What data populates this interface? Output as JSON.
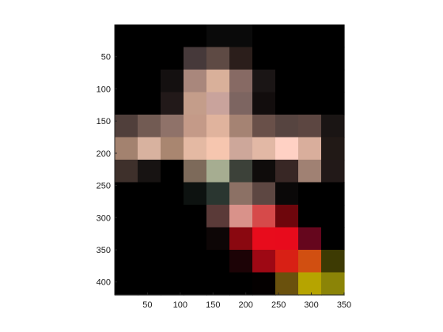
{
  "chart_data": {
    "type": "heatmap",
    "title": "",
    "xlabel": "",
    "ylabel": "",
    "xlim": [
      0,
      350
    ],
    "ylim": [
      0,
      420
    ],
    "y_direction": "reversed",
    "grid": false,
    "block_size": 35,
    "x_ticks": [
      50,
      100,
      150,
      200,
      250,
      300,
      350
    ],
    "y_ticks": [
      50,
      100,
      150,
      200,
      250,
      300,
      350,
      400
    ],
    "pixel_rgb": [
      [
        [
          "#000000",
          "#000000",
          "#000000",
          "#000000",
          "#0a0a0a",
          "#0a0a0a",
          "#000000",
          "#000000",
          "#000000",
          "#000000"
        ],
        [
          "#000000",
          "#000000",
          "#000000",
          "#46393a",
          "#5e4a44",
          "#2b1e1b",
          "#000000",
          "#000000",
          "#000000",
          "#000000"
        ],
        [
          "#000000",
          "#000000",
          "#141010",
          "#a9877c",
          "#d9b09a",
          "#876a64",
          "#1a1515",
          "#000000",
          "#000000",
          "#000000"
        ],
        [
          "#000000",
          "#000000",
          "#221919",
          "#c49d8a",
          "#c9a39c",
          "#7d6561",
          "#120d0d",
          "#000000",
          "#000000",
          "#000000"
        ],
        [
          "#503f3b",
          "#725b53",
          "#8f7269",
          "#c49a88",
          "#e0b39d",
          "#a58373",
          "#695049",
          "#564440",
          "#5c4641",
          "#1a1514"
        ],
        [
          "#a3826f",
          "#d8b29f",
          "#a98670",
          "#e4b9a3",
          "#f6c6af",
          "#cda79a",
          "#e2b8a5",
          "#ffd1c4",
          "#d9ae9c",
          "#211916"
        ],
        [
          "#3e302b",
          "#171312",
          "#000000",
          "#7d6a5a",
          "#a6ad91",
          "#3c4139",
          "#0f0c0b",
          "#382725",
          "#a08173",
          "#221918"
        ],
        [
          "#000000",
          "#000000",
          "#000000",
          "#0d1210",
          "#2a3630",
          "#8c7165",
          "#5d4742",
          "#0a0808",
          "#000000",
          "#000000"
        ],
        [
          "#000000",
          "#000000",
          "#000000",
          "#000000",
          "#5a3a38",
          "#d9928a",
          "#d64a4a",
          "#6e060c",
          "#000000",
          "#000000"
        ],
        [
          "#000000",
          "#000000",
          "#000000",
          "#000000",
          "#0d0606",
          "#8a0810",
          "#e80c1c",
          "#e80b1c",
          "#65061d",
          "#000000"
        ],
        [
          "#000000",
          "#000000",
          "#000000",
          "#000000",
          "#000000",
          "#1c0306",
          "#9e0814",
          "#d82015",
          "#d14f11",
          "#3d3a03"
        ],
        [
          "#000000",
          "#000000",
          "#000000",
          "#000000",
          "#000000",
          "#000000",
          "#040000",
          "#6a510d",
          "#b6a400",
          "#8b8407"
        ],
        [
          "#000000",
          "#000000",
          "#000000",
          "#000000",
          "#000000",
          "#000000",
          "#000000",
          "#0b0c06",
          "#131409",
          "#1e1d0a"
        ]
      ]
    ]
  }
}
